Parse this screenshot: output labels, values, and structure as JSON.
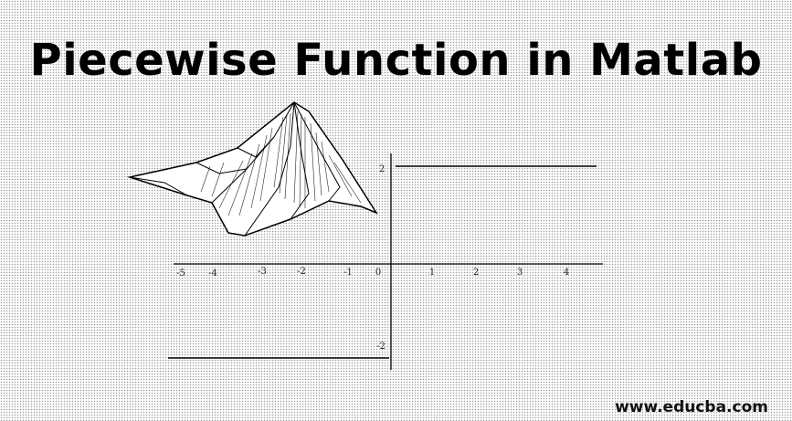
{
  "title": "Piecewise Function in Matlab",
  "watermark": "www.educba.com",
  "x_ticks": [
    "-5",
    "-4",
    "-3",
    "-2",
    "-1",
    "0",
    "1",
    "2",
    "3",
    "4"
  ],
  "y_ticks": {
    "top": "2",
    "bottom": "-2"
  },
  "icons": {
    "surface": "3d-surface-plot-icon"
  }
}
